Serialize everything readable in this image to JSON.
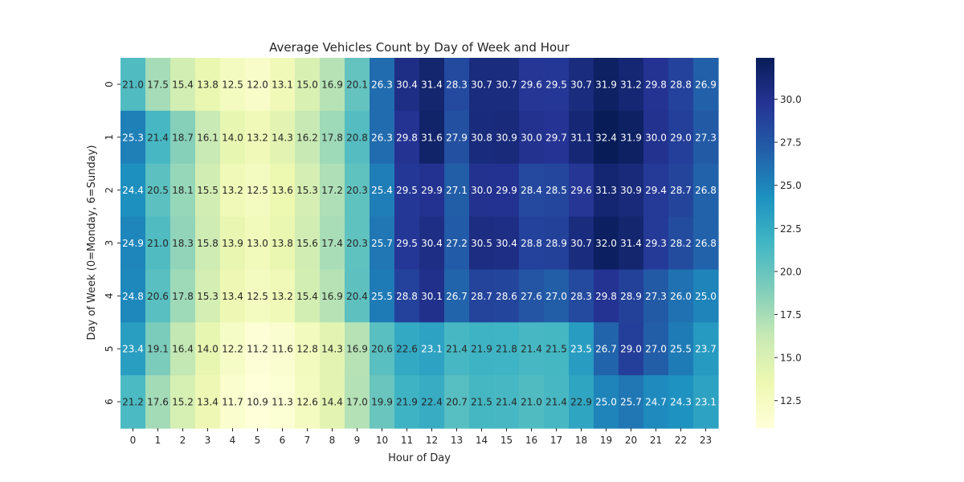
{
  "chart_data": {
    "type": "heatmap",
    "title": "Average Vehicles Count by Day of Week and Hour",
    "xlabel": "Hour of Day",
    "ylabel": "Day of Week (0=Monday, 6=Sunday)",
    "x_categories": [
      "0",
      "1",
      "2",
      "3",
      "4",
      "5",
      "6",
      "7",
      "8",
      "9",
      "10",
      "11",
      "12",
      "13",
      "14",
      "15",
      "16",
      "17",
      "18",
      "19",
      "20",
      "21",
      "22",
      "23"
    ],
    "y_categories": [
      "0",
      "1",
      "2",
      "3",
      "4",
      "5",
      "6"
    ],
    "values": [
      [
        21.0,
        17.5,
        15.4,
        13.8,
        12.5,
        12.0,
        13.1,
        15.0,
        16.9,
        20.1,
        26.3,
        30.4,
        31.4,
        28.3,
        30.7,
        30.7,
        29.6,
        29.5,
        30.7,
        31.9,
        31.2,
        29.8,
        28.8,
        26.9
      ],
      [
        25.3,
        21.4,
        18.7,
        16.1,
        14.0,
        13.2,
        14.3,
        16.2,
        17.8,
        20.8,
        26.3,
        29.8,
        31.6,
        27.9,
        30.8,
        30.9,
        30.0,
        29.7,
        31.1,
        32.4,
        31.9,
        30.0,
        29.0,
        27.3
      ],
      [
        24.4,
        20.5,
        18.1,
        15.5,
        13.2,
        12.5,
        13.6,
        15.3,
        17.2,
        20.3,
        25.4,
        29.5,
        29.9,
        27.1,
        30.0,
        29.9,
        28.4,
        28.5,
        29.6,
        31.3,
        30.9,
        29.4,
        28.7,
        26.8
      ],
      [
        24.9,
        21.0,
        18.3,
        15.8,
        13.9,
        13.0,
        13.8,
        15.6,
        17.4,
        20.3,
        25.7,
        29.5,
        30.4,
        27.2,
        30.5,
        30.4,
        28.8,
        28.9,
        30.7,
        32.0,
        31.4,
        29.3,
        28.2,
        26.8
      ],
      [
        24.8,
        20.6,
        17.8,
        15.3,
        13.4,
        12.5,
        13.2,
        15.4,
        16.9,
        20.4,
        25.5,
        28.8,
        30.1,
        26.7,
        28.7,
        28.6,
        27.6,
        27.0,
        28.3,
        29.8,
        28.9,
        27.3,
        26.0,
        25.0
      ],
      [
        23.4,
        19.1,
        16.4,
        14.0,
        12.2,
        11.2,
        11.6,
        12.8,
        14.3,
        16.9,
        20.6,
        22.6,
        23.1,
        21.4,
        21.9,
        21.8,
        21.4,
        21.5,
        23.5,
        26.7,
        29.0,
        27.0,
        25.5,
        23.7
      ],
      [
        21.2,
        17.6,
        15.2,
        13.4,
        11.7,
        10.9,
        11.3,
        12.6,
        14.4,
        17.0,
        19.9,
        21.9,
        22.4,
        20.7,
        21.5,
        21.4,
        21.0,
        21.4,
        22.9,
        25.0,
        25.7,
        24.7,
        24.3,
        23.1
      ]
    ],
    "colorscale": "YlGnBu",
    "vmin": 10.9,
    "vmax": 32.4,
    "colorbar_ticks": [
      "12.5",
      "15.0",
      "17.5",
      "20.0",
      "22.5",
      "25.0",
      "27.5",
      "30.0"
    ]
  }
}
